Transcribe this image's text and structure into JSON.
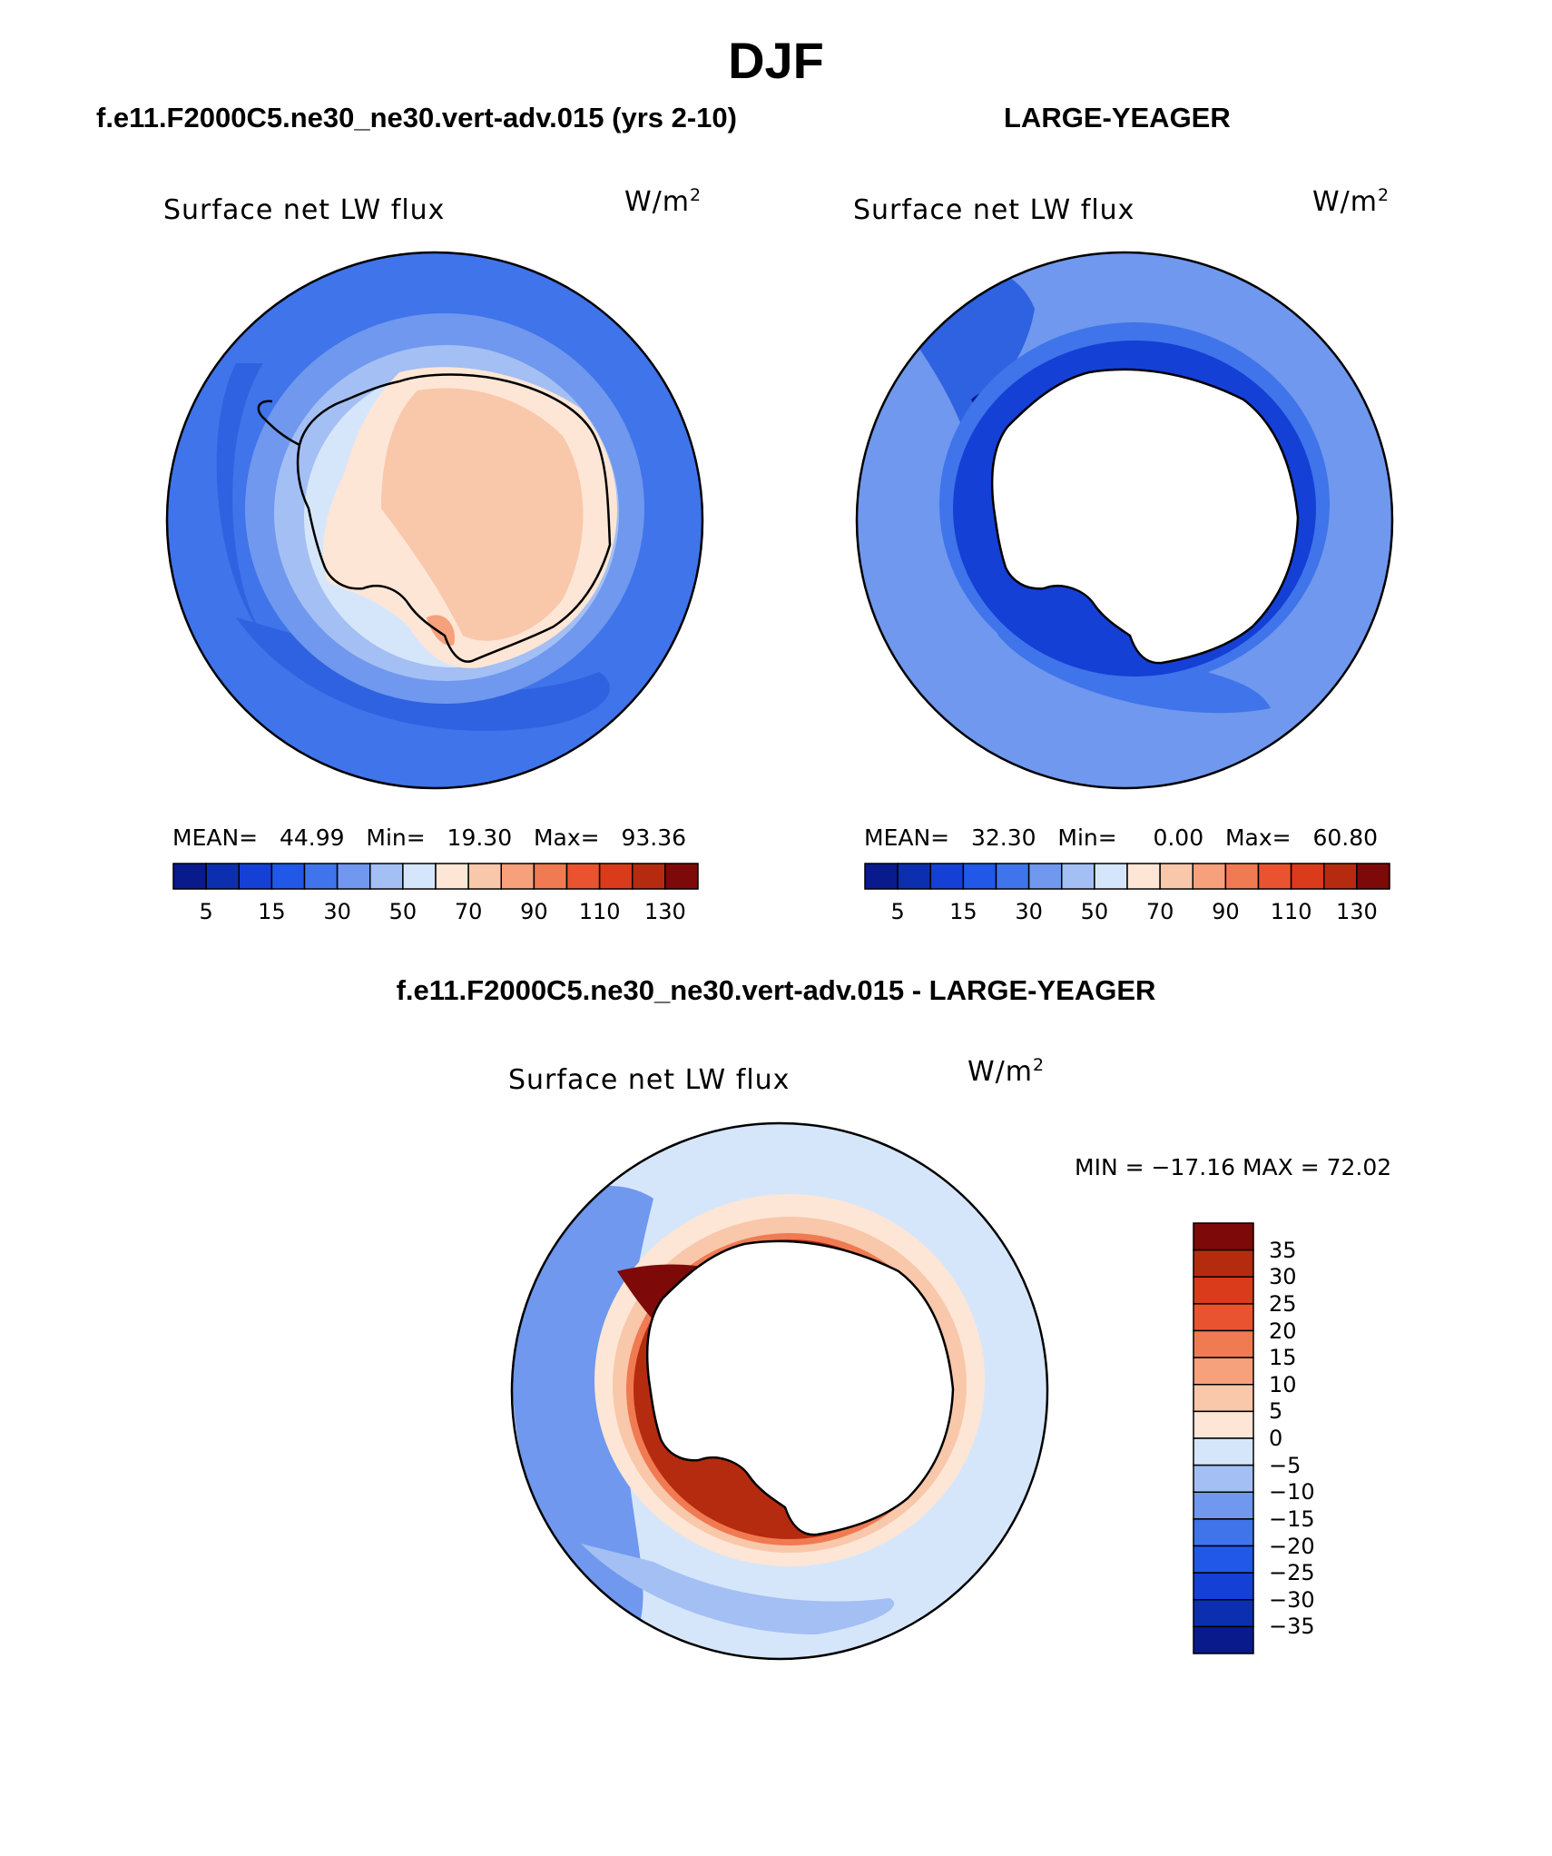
{
  "title": "DJF",
  "panels": {
    "left": {
      "case_title": "f.e11.F2000C5.ne30_ne30.vert-adv.015 (yrs 2-10)",
      "variable": "Surface net LW flux",
      "units": "W/m",
      "units_exp": "2",
      "stats": {
        "mean_label": "MEAN=",
        "mean": "44.99",
        "min_label": "Min=",
        "min": "19.30",
        "max_label": "Max=",
        "max": "93.36"
      }
    },
    "right": {
      "case_title": "LARGE-YEAGER",
      "variable": "Surface net LW flux",
      "units": "W/m",
      "units_exp": "2",
      "stats": {
        "mean_label": "MEAN=",
        "mean": "32.30",
        "min_label": "Min=",
        "min": "0.00",
        "max_label": "Max=",
        "max": "60.80"
      }
    },
    "difference": {
      "case_title": "f.e11.F2000C5.ne30_ne30.vert-adv.015 - LARGE-YEAGER",
      "variable": "Surface net LW flux",
      "units": "W/m",
      "units_exp": "2",
      "range_text": "MIN = −17.16 MAX =   72.02"
    }
  },
  "colorbar_field": {
    "colors": [
      "#081a8c",
      "#0c2fb0",
      "#1440d6",
      "#2158e8",
      "#3f74ea",
      "#6f98ee",
      "#a3bff4",
      "#d6e6fa",
      "#fde6d6",
      "#f9c7aa",
      "#f6a07c",
      "#f07a52",
      "#e9532f",
      "#d93b1b",
      "#b52b0f",
      "#7d0a08"
    ],
    "tick_labels": [
      "5",
      "15",
      "30",
      "50",
      "70",
      "90",
      "110",
      "130"
    ]
  },
  "colorbar_difference": {
    "colors": [
      "#7d0a08",
      "#b52b0f",
      "#d93b1b",
      "#e9532f",
      "#f07a52",
      "#f6a07c",
      "#f9c7aa",
      "#fde6d6",
      "#d6e6fa",
      "#a3bff4",
      "#6f98ee",
      "#3f74ea",
      "#2158e8",
      "#1440d6",
      "#0c2fb0",
      "#081a8c"
    ],
    "tick_labels": [
      "35",
      "30",
      "25",
      "20",
      "15",
      "10",
      "5",
      "0",
      "−5",
      "−10",
      "−15",
      "−20",
      "−25",
      "−30",
      "−35"
    ]
  }
}
